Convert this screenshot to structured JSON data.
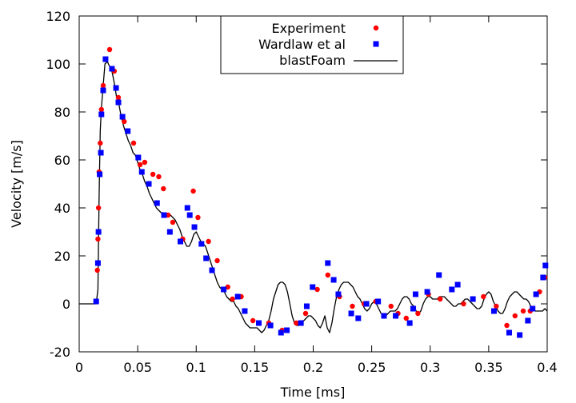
{
  "chart_data": {
    "type": "scatter",
    "title": "",
    "xlabel": "Time [ms]",
    "ylabel": "Velocity [m/s]",
    "xlim": [
      0,
      0.4
    ],
    "ylim": [
      -20,
      120
    ],
    "x_ticks": [
      "0",
      "0.05",
      "0.1",
      "0.15",
      "0.2",
      "0.25",
      "0.3",
      "0.35",
      "0.4"
    ],
    "y_ticks": [
      "-20",
      "0",
      "20",
      "40",
      "60",
      "80",
      "100",
      "120"
    ],
    "x_tick_values": [
      0,
      0.05,
      0.1,
      0.15,
      0.2,
      0.25,
      0.3,
      0.35,
      0.4
    ],
    "y_tick_values": [
      -20,
      0,
      20,
      40,
      60,
      80,
      100,
      120
    ],
    "grid": false,
    "legend_position": "top-center",
    "series": [
      {
        "name": "Experiment",
        "marker": "circle",
        "color": "#ff0000",
        "points": [
          [
            0.0145,
            1
          ],
          [
            0.0155,
            14
          ],
          [
            0.016,
            27
          ],
          [
            0.0165,
            40
          ],
          [
            0.017,
            55
          ],
          [
            0.018,
            67
          ],
          [
            0.019,
            81
          ],
          [
            0.0205,
            91
          ],
          [
            0.026,
            106
          ],
          [
            0.03,
            97
          ],
          [
            0.0335,
            86
          ],
          [
            0.0385,
            76
          ],
          [
            0.0465,
            67
          ],
          [
            0.052,
            58
          ],
          [
            0.056,
            59
          ],
          [
            0.063,
            54
          ],
          [
            0.068,
            53
          ],
          [
            0.072,
            48
          ],
          [
            0.076,
            37
          ],
          [
            0.08,
            34
          ],
          [
            0.0885,
            27
          ],
          [
            0.0975,
            47
          ],
          [
            0.1015,
            36
          ],
          [
            0.1105,
            26
          ],
          [
            0.118,
            18
          ],
          [
            0.127,
            7
          ],
          [
            0.131,
            2
          ],
          [
            0.1385,
            3
          ],
          [
            0.1485,
            -7
          ],
          [
            0.162,
            -8
          ],
          [
            0.1735,
            -11
          ],
          [
            0.1855,
            -8
          ],
          [
            0.1935,
            -4
          ],
          [
            0.2035,
            6
          ],
          [
            0.2125,
            12
          ],
          [
            0.2225,
            3
          ],
          [
            0.2335,
            -1
          ],
          [
            0.2435,
            0
          ],
          [
            0.2535,
            1
          ],
          [
            0.2665,
            -1
          ],
          [
            0.2725,
            -4
          ],
          [
            0.2795,
            -6
          ],
          [
            0.2895,
            -4
          ],
          [
            0.2985,
            4
          ],
          [
            0.3085,
            2
          ],
          [
            0.3185,
            6
          ],
          [
            0.3285,
            0
          ],
          [
            0.3455,
            3
          ],
          [
            0.3565,
            -1
          ],
          [
            0.3655,
            -9
          ],
          [
            0.3725,
            -5
          ],
          [
            0.3795,
            -3
          ],
          [
            0.3855,
            -3
          ],
          [
            0.3935,
            5
          ],
          [
            0.398,
            11
          ]
        ]
      },
      {
        "name": "Wardlaw et al",
        "marker": "square",
        "color": "#0000ff",
        "points": [
          [
            0.0145,
            1
          ],
          [
            0.016,
            17
          ],
          [
            0.0165,
            30
          ],
          [
            0.0175,
            54
          ],
          [
            0.0185,
            63
          ],
          [
            0.019,
            79
          ],
          [
            0.0205,
            89
          ],
          [
            0.0225,
            102
          ],
          [
            0.028,
            98
          ],
          [
            0.0315,
            90
          ],
          [
            0.0335,
            84
          ],
          [
            0.037,
            78
          ],
          [
            0.0415,
            72
          ],
          [
            0.0505,
            61
          ],
          [
            0.0535,
            55
          ],
          [
            0.0595,
            50
          ],
          [
            0.0665,
            42
          ],
          [
            0.0725,
            37
          ],
          [
            0.0775,
            30
          ],
          [
            0.0865,
            26
          ],
          [
            0.0925,
            40
          ],
          [
            0.0945,
            37
          ],
          [
            0.0985,
            32
          ],
          [
            0.1045,
            25
          ],
          [
            0.1085,
            19
          ],
          [
            0.1135,
            14
          ],
          [
            0.1235,
            6
          ],
          [
            0.1355,
            3
          ],
          [
            0.1415,
            -3
          ],
          [
            0.1535,
            -8
          ],
          [
            0.1635,
            -9
          ],
          [
            0.1725,
            -12
          ],
          [
            0.1775,
            -11
          ],
          [
            0.1895,
            -8
          ],
          [
            0.1945,
            -1
          ],
          [
            0.1995,
            7
          ],
          [
            0.2125,
            17
          ],
          [
            0.2175,
            10
          ],
          [
            0.2215,
            4
          ],
          [
            0.2325,
            -4
          ],
          [
            0.2385,
            -6
          ],
          [
            0.2455,
            0
          ],
          [
            0.2555,
            1
          ],
          [
            0.2605,
            -5
          ],
          [
            0.2705,
            -5
          ],
          [
            0.2825,
            -8
          ],
          [
            0.2855,
            -2
          ],
          [
            0.2875,
            4
          ],
          [
            0.2975,
            5
          ],
          [
            0.3075,
            12
          ],
          [
            0.3185,
            6
          ],
          [
            0.3235,
            8
          ],
          [
            0.3365,
            2
          ],
          [
            0.3545,
            -3
          ],
          [
            0.3675,
            -12
          ],
          [
            0.3765,
            -13
          ],
          [
            0.3835,
            -7
          ],
          [
            0.3875,
            -2
          ],
          [
            0.3905,
            4
          ],
          [
            0.3965,
            11
          ],
          [
            0.3985,
            16
          ]
        ]
      },
      {
        "name": "blastFoam",
        "marker": "line",
        "color": "#000000",
        "points": [
          [
            0.0,
            0
          ],
          [
            0.0145,
            0
          ],
          [
            0.016,
            6
          ],
          [
            0.017,
            45
          ],
          [
            0.018,
            72
          ],
          [
            0.019,
            82
          ],
          [
            0.02,
            88
          ],
          [
            0.021,
            94
          ],
          [
            0.022,
            100
          ],
          [
            0.024,
            101
          ],
          [
            0.026,
            99
          ],
          [
            0.028,
            97
          ],
          [
            0.03,
            92
          ],
          [
            0.032,
            86
          ],
          [
            0.034,
            83
          ],
          [
            0.036,
            78
          ],
          [
            0.038,
            74
          ],
          [
            0.04,
            71
          ],
          [
            0.042,
            68
          ],
          [
            0.044,
            66
          ],
          [
            0.046,
            63
          ],
          [
            0.048,
            62
          ],
          [
            0.05,
            59
          ],
          [
            0.052,
            56
          ],
          [
            0.054,
            54
          ],
          [
            0.056,
            51
          ],
          [
            0.058,
            49
          ],
          [
            0.06,
            46
          ],
          [
            0.062,
            44
          ],
          [
            0.064,
            42
          ],
          [
            0.066,
            40
          ],
          [
            0.068,
            39
          ],
          [
            0.07,
            38
          ],
          [
            0.072,
            38
          ],
          [
            0.074,
            37
          ],
          [
            0.076,
            37
          ],
          [
            0.078,
            37
          ],
          [
            0.08,
            36
          ],
          [
            0.082,
            35
          ],
          [
            0.084,
            33
          ],
          [
            0.086,
            31
          ],
          [
            0.088,
            28
          ],
          [
            0.09,
            26
          ],
          [
            0.092,
            24
          ],
          [
            0.094,
            24
          ],
          [
            0.096,
            26
          ],
          [
            0.098,
            29
          ],
          [
            0.1,
            30
          ],
          [
            0.102,
            28
          ],
          [
            0.104,
            26
          ],
          [
            0.106,
            25
          ],
          [
            0.108,
            24
          ],
          [
            0.11,
            21
          ],
          [
            0.112,
            18
          ],
          [
            0.114,
            15
          ],
          [
            0.116,
            12
          ],
          [
            0.118,
            9
          ],
          [
            0.12,
            7
          ],
          [
            0.122,
            6
          ],
          [
            0.124,
            5
          ],
          [
            0.126,
            3
          ],
          [
            0.128,
            2
          ],
          [
            0.13,
            1
          ],
          [
            0.132,
            1
          ],
          [
            0.134,
            -1
          ],
          [
            0.136,
            -2
          ],
          [
            0.138,
            -4
          ],
          [
            0.14,
            -6
          ],
          [
            0.142,
            -8
          ],
          [
            0.144,
            -9
          ],
          [
            0.146,
            -10
          ],
          [
            0.148,
            -10
          ],
          [
            0.15,
            -10
          ],
          [
            0.152,
            -10
          ],
          [
            0.154,
            -11
          ],
          [
            0.156,
            -12
          ],
          [
            0.158,
            -11
          ],
          [
            0.16,
            -9
          ],
          [
            0.162,
            -7
          ],
          [
            0.164,
            -3
          ],
          [
            0.166,
            2
          ],
          [
            0.168,
            5
          ],
          [
            0.17,
            8
          ],
          [
            0.172,
            9
          ],
          [
            0.174,
            9
          ],
          [
            0.176,
            8
          ],
          [
            0.178,
            5
          ],
          [
            0.18,
            0
          ],
          [
            0.182,
            -5
          ],
          [
            0.184,
            -8
          ],
          [
            0.186,
            -9
          ],
          [
            0.188,
            -9
          ],
          [
            0.19,
            -8
          ],
          [
            0.192,
            -7
          ],
          [
            0.194,
            -6
          ],
          [
            0.196,
            -5
          ],
          [
            0.198,
            -5
          ],
          [
            0.2,
            -6
          ],
          [
            0.202,
            -7
          ],
          [
            0.204,
            -9
          ],
          [
            0.206,
            -10
          ],
          [
            0.208,
            -8
          ],
          [
            0.21,
            -5
          ],
          [
            0.212,
            -10
          ],
          [
            0.214,
            -12
          ],
          [
            0.216,
            -8
          ],
          [
            0.218,
            -2
          ],
          [
            0.22,
            3
          ],
          [
            0.222,
            6
          ],
          [
            0.224,
            8
          ],
          [
            0.226,
            9
          ],
          [
            0.228,
            9
          ],
          [
            0.23,
            9
          ],
          [
            0.232,
            8
          ],
          [
            0.234,
            7
          ],
          [
            0.236,
            5
          ],
          [
            0.238,
            3
          ],
          [
            0.24,
            2
          ],
          [
            0.242,
            0
          ],
          [
            0.244,
            -2
          ],
          [
            0.246,
            -3
          ],
          [
            0.248,
            -2
          ],
          [
            0.25,
            0
          ],
          [
            0.252,
            1
          ],
          [
            0.254,
            0
          ],
          [
            0.256,
            -2
          ],
          [
            0.258,
            -4
          ],
          [
            0.26,
            -5
          ],
          [
            0.262,
            -5
          ],
          [
            0.264,
            -4
          ],
          [
            0.266,
            -3
          ],
          [
            0.268,
            -3
          ],
          [
            0.27,
            -3
          ],
          [
            0.272,
            -2
          ],
          [
            0.274,
            0
          ],
          [
            0.276,
            2
          ],
          [
            0.278,
            3
          ],
          [
            0.28,
            3
          ],
          [
            0.282,
            2
          ],
          [
            0.284,
            0
          ],
          [
            0.286,
            -1
          ],
          [
            0.288,
            -3
          ],
          [
            0.29,
            -4
          ],
          [
            0.292,
            -3
          ],
          [
            0.294,
            0
          ],
          [
            0.296,
            2
          ],
          [
            0.298,
            3
          ],
          [
            0.3,
            3
          ],
          [
            0.302,
            2
          ],
          [
            0.304,
            2
          ],
          [
            0.306,
            2
          ],
          [
            0.308,
            3
          ],
          [
            0.31,
            3
          ],
          [
            0.312,
            3
          ],
          [
            0.314,
            2
          ],
          [
            0.316,
            1
          ],
          [
            0.318,
            0
          ],
          [
            0.32,
            -1
          ],
          [
            0.322,
            -1
          ],
          [
            0.324,
            0
          ],
          [
            0.326,
            0
          ],
          [
            0.328,
            1
          ],
          [
            0.33,
            2
          ],
          [
            0.332,
            2
          ],
          [
            0.334,
            1
          ],
          [
            0.336,
            0
          ],
          [
            0.338,
            -1
          ],
          [
            0.34,
            -2
          ],
          [
            0.342,
            -2
          ],
          [
            0.344,
            -1
          ],
          [
            0.346,
            2
          ],
          [
            0.348,
            4
          ],
          [
            0.35,
            5
          ],
          [
            0.352,
            4
          ],
          [
            0.354,
            1
          ],
          [
            0.356,
            -1
          ],
          [
            0.358,
            -3
          ],
          [
            0.36,
            -4
          ],
          [
            0.362,
            -4
          ],
          [
            0.364,
            -2
          ],
          [
            0.366,
            1
          ],
          [
            0.368,
            3
          ],
          [
            0.37,
            4
          ],
          [
            0.372,
            5
          ],
          [
            0.374,
            5
          ],
          [
            0.376,
            4
          ],
          [
            0.378,
            3
          ],
          [
            0.38,
            2
          ],
          [
            0.382,
            2
          ],
          [
            0.384,
            1
          ],
          [
            0.386,
            -1
          ],
          [
            0.388,
            -2
          ],
          [
            0.39,
            -3
          ],
          [
            0.392,
            -3
          ],
          [
            0.394,
            -3
          ],
          [
            0.396,
            -3
          ],
          [
            0.398,
            -2
          ],
          [
            0.4,
            -3
          ]
        ]
      }
    ]
  }
}
